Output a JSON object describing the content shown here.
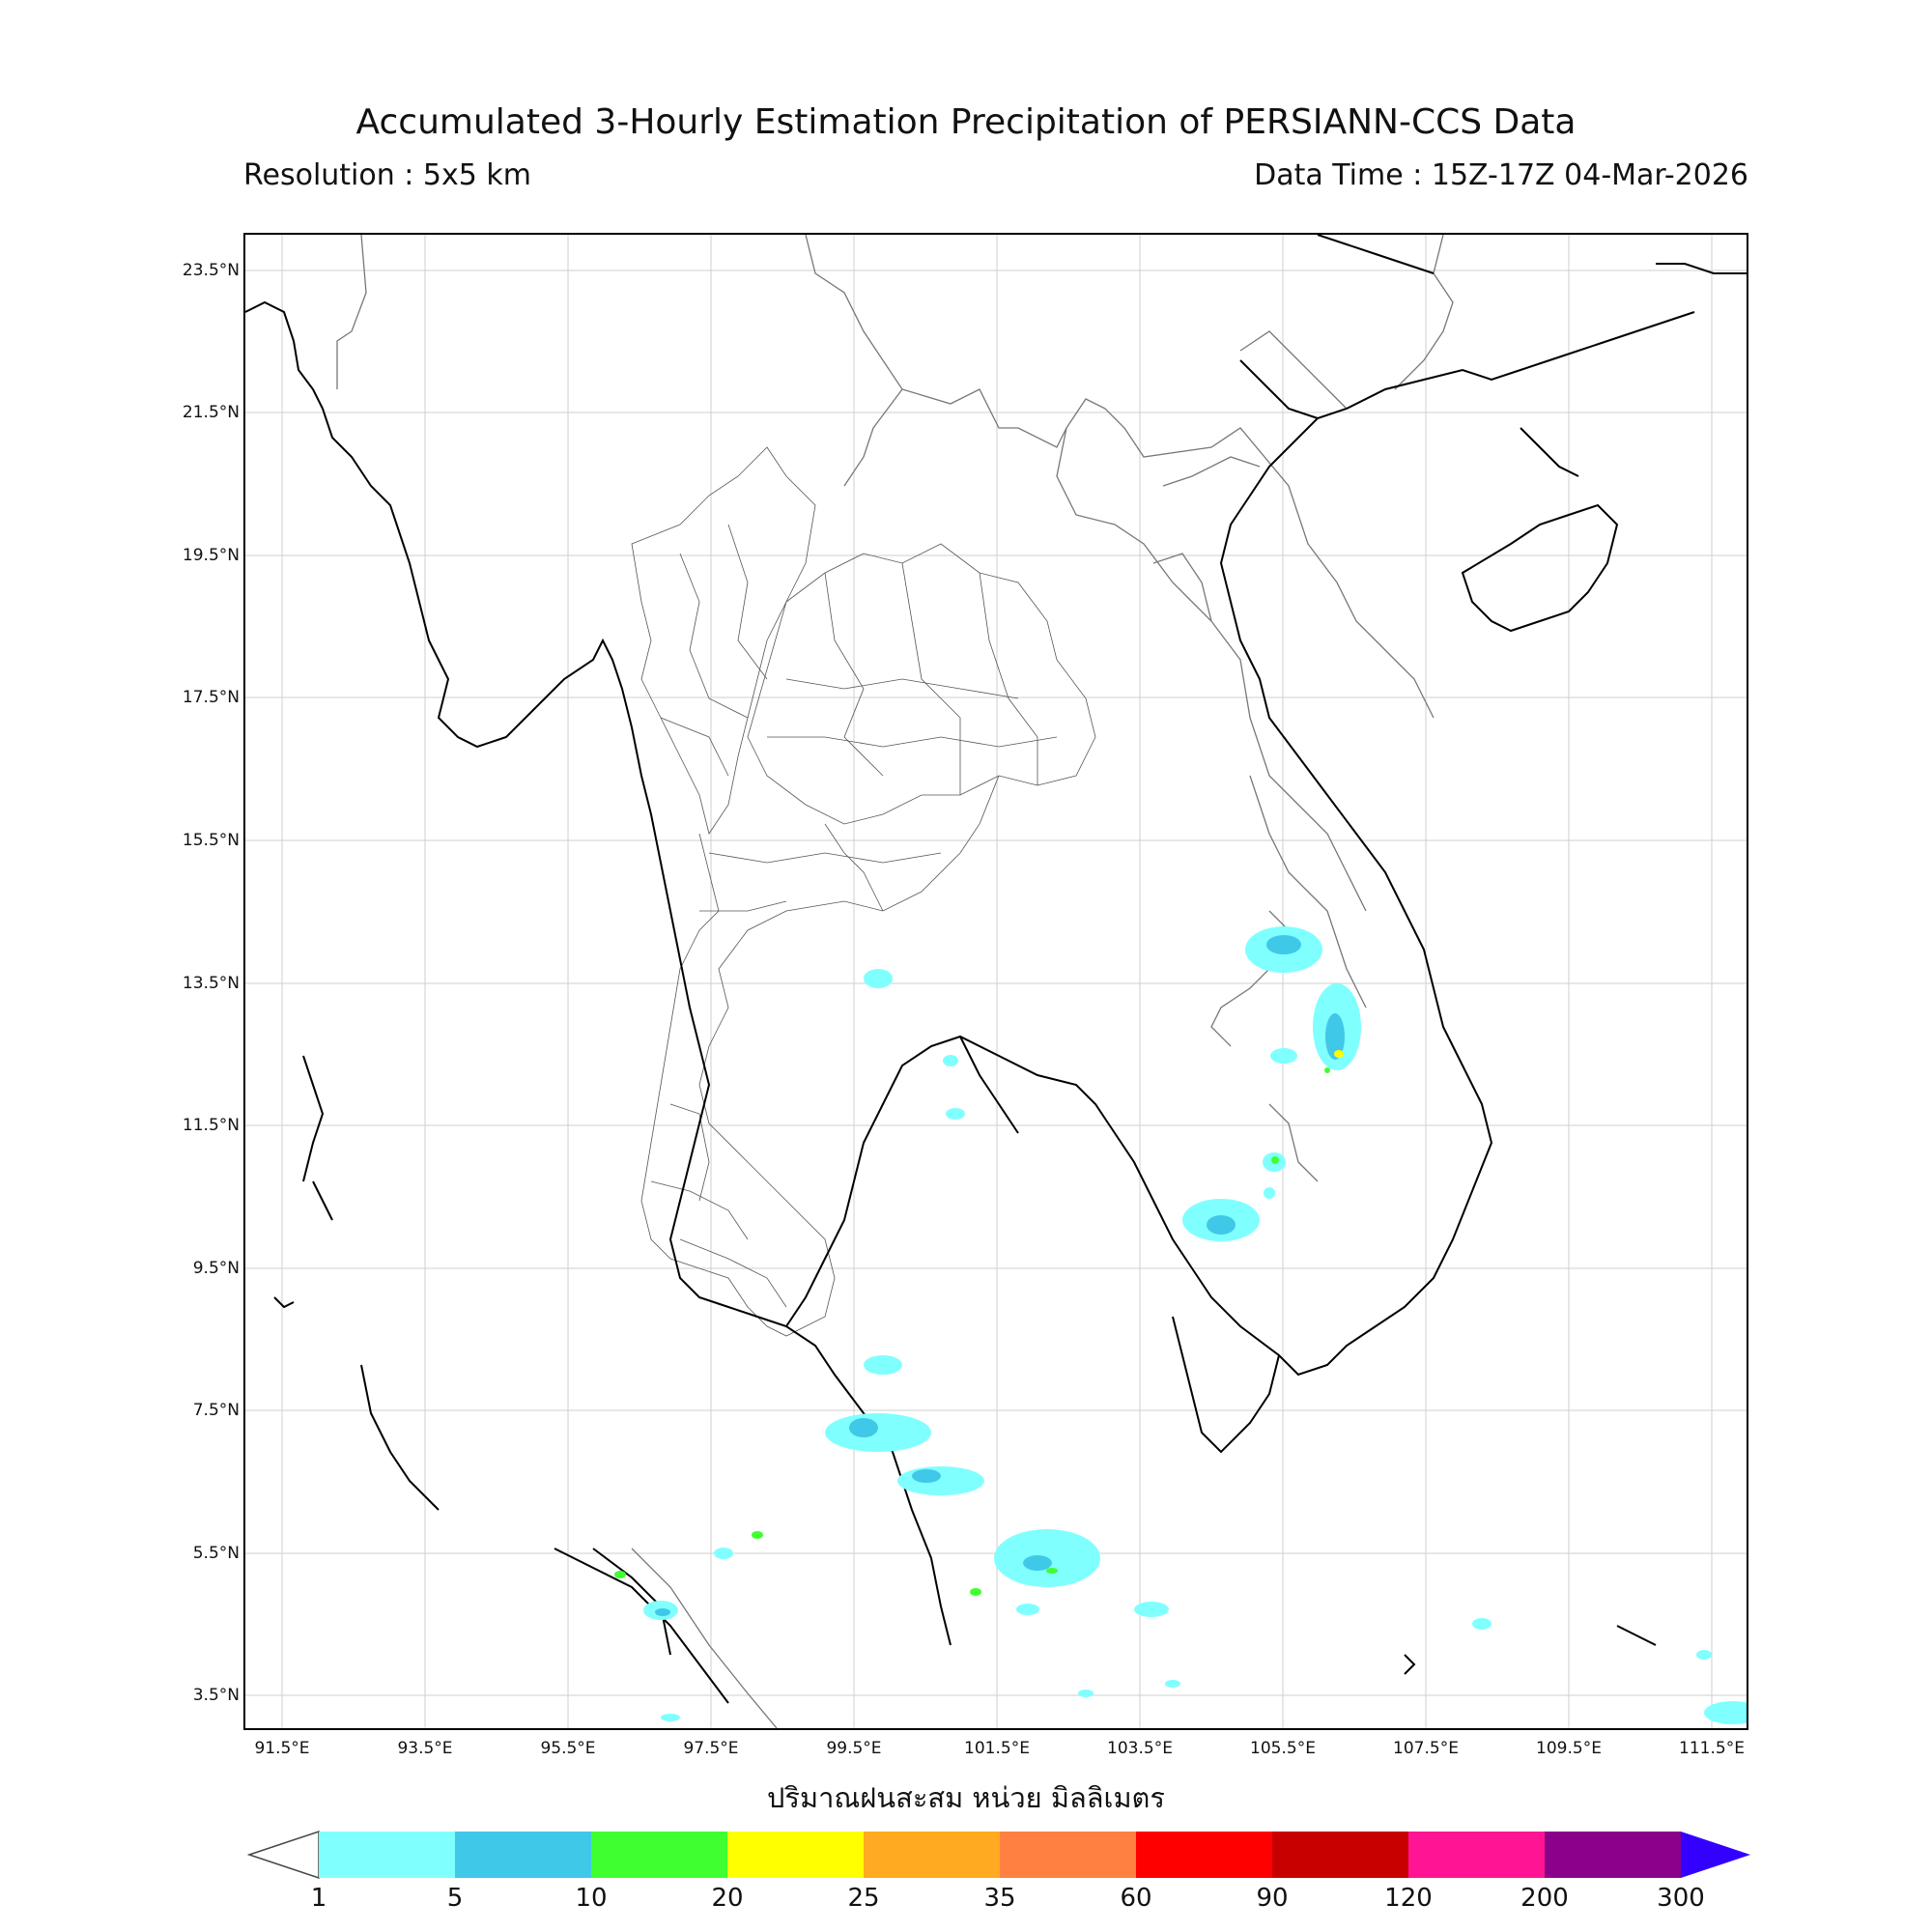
{
  "title": "Accumulated 3-Hourly Estimation Precipitation of PERSIANN-CCS Data",
  "resolution": "Resolution : 5x5 km",
  "data_time": "Data Time : 15Z-17Z 04-Mar-2026",
  "xlabel": "ปริมาณฝนสะสม หน่วย มิลลิเมตร",
  "latitudes": [
    "23.5°N",
    "21.5°N",
    "19.5°N",
    "17.5°N",
    "15.5°N",
    "13.5°N",
    "11.5°N",
    "9.5°N",
    "7.5°N",
    "5.5°N",
    "3.5°N"
  ],
  "longitudes": [
    "91.5°E",
    "93.5°E",
    "95.5°E",
    "97.5°E",
    "99.5°E",
    "101.5°E",
    "103.5°E",
    "105.5°E",
    "107.5°E",
    "109.5°E",
    "111.5°E"
  ],
  "colorbar": {
    "ticks": [
      "1",
      "5",
      "10",
      "20",
      "25",
      "35",
      "60",
      "90",
      "120",
      "200",
      "300"
    ],
    "colors": [
      "#80ffff",
      "#40c8e8",
      "#40ff30",
      "#ffff00",
      "#ffaa20",
      "#ff8040",
      "#ff0000",
      "#c80000",
      "#ff1493",
      "#8b008b"
    ],
    "under_color": "#ffffff",
    "over_color": "#3300ff"
  },
  "icons": {
    "rain_area": "precipitation-patch"
  }
}
